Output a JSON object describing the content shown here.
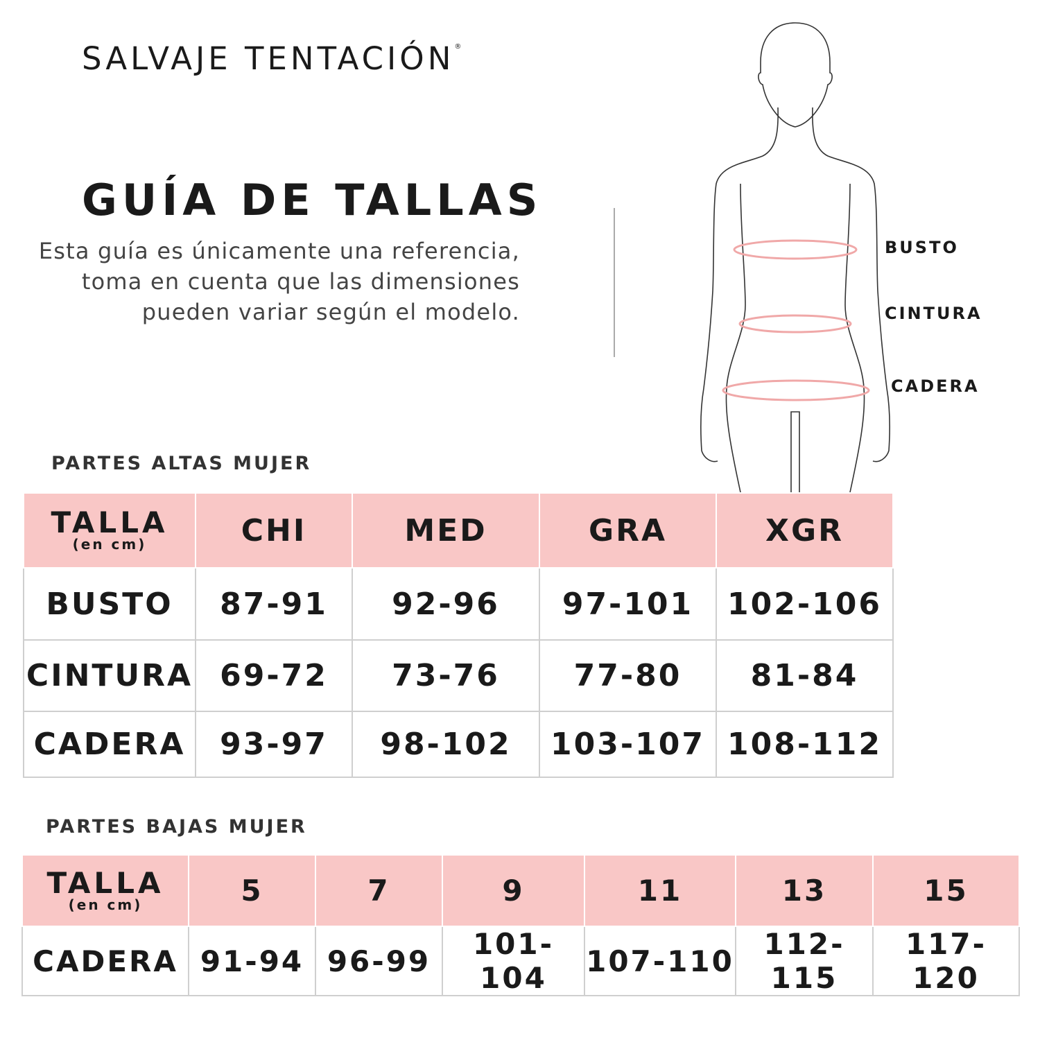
{
  "brand": {
    "name": "SALVAJE TENTACIÓN",
    "mark": "®"
  },
  "title": "GUÍA DE TALLAS",
  "description": "Esta guía es únicamente una referencia, toma en cuenta que las dimensiones pueden variar según el modelo.",
  "figure": {
    "labels": [
      "BUSTO",
      "CINTURA",
      "CADERA"
    ],
    "accent_color": "#f0a8a8"
  },
  "colors": {
    "header_bg": "#f9c7c6",
    "text": "#1a1a1a"
  },
  "upper": {
    "section_title": "PARTES ALTAS MUJER",
    "header": {
      "label": "TALLA",
      "unit": "(en cm)",
      "sizes": [
        "CHI",
        "MED",
        "GRA",
        "XGR"
      ]
    },
    "rows": [
      {
        "label": "BUSTO",
        "values": [
          "87-91",
          "92-96",
          "97-101",
          "102-106"
        ]
      },
      {
        "label": "CINTURA",
        "values": [
          "69-72",
          "73-76",
          "77-80",
          "81-84"
        ]
      },
      {
        "label": "CADERA",
        "values": [
          "93-97",
          "98-102",
          "103-107",
          "108-112"
        ]
      }
    ]
  },
  "lower": {
    "section_title": "PARTES BAJAS MUJER",
    "header": {
      "label": "TALLA",
      "unit": "(en cm)",
      "sizes": [
        "5",
        "7",
        "9",
        "11",
        "13",
        "15"
      ]
    },
    "rows": [
      {
        "label": "CADERA",
        "values": [
          "91-94",
          "96-99",
          "101-104",
          "107-110",
          "112-115",
          "117-120"
        ]
      }
    ]
  }
}
